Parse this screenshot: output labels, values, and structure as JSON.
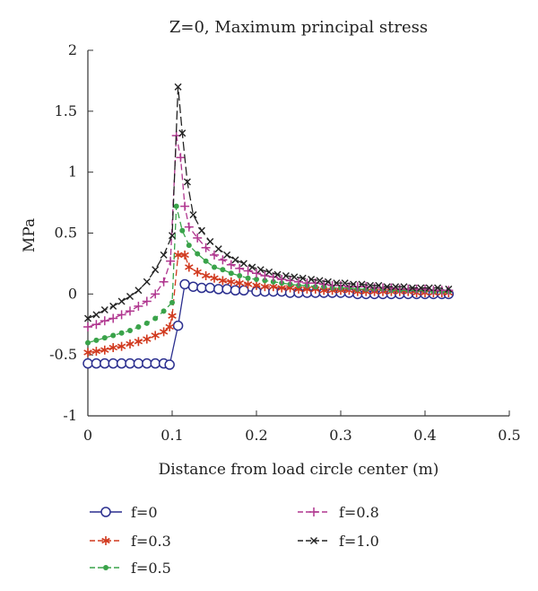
{
  "chart_data": {
    "type": "line",
    "title": "Z=0, Maximum principal stress",
    "xlabel": "Distance from load circle center (m)",
    "ylabel": "MPa",
    "xlim": [
      0,
      0.5
    ],
    "ylim": [
      -1,
      2
    ],
    "xticks": [
      0,
      0.1,
      0.2,
      0.3,
      0.4,
      0.5
    ],
    "xtick_labels": [
      "0",
      "0.1",
      "0.2",
      "0.3",
      "0.4",
      "0.5"
    ],
    "yticks": [
      -1,
      -0.5,
      0,
      0.5,
      1,
      1.5,
      2
    ],
    "ytick_labels": [
      "-1",
      "-0.5",
      "0",
      "0.5",
      "1",
      "1.5",
      "2"
    ],
    "grid": false,
    "legend_position": "bottom",
    "series": [
      {
        "name": "f=0",
        "color": "#2b2f8f",
        "marker": "circle",
        "dash": "solid",
        "x": [
          0,
          0.01,
          0.02,
          0.03,
          0.04,
          0.05,
          0.06,
          0.07,
          0.08,
          0.09,
          0.097,
          0.107,
          0.115,
          0.125,
          0.135,
          0.145,
          0.155,
          0.165,
          0.175,
          0.185,
          0.2,
          0.21,
          0.22,
          0.23,
          0.24,
          0.25,
          0.26,
          0.27,
          0.28,
          0.29,
          0.3,
          0.31,
          0.32,
          0.33,
          0.34,
          0.35,
          0.36,
          0.37,
          0.38,
          0.39,
          0.4,
          0.41,
          0.42,
          0.428
        ],
        "y": [
          -0.57,
          -0.57,
          -0.57,
          -0.57,
          -0.57,
          -0.57,
          -0.57,
          -0.57,
          -0.57,
          -0.57,
          -0.58,
          -0.26,
          0.08,
          0.06,
          0.05,
          0.05,
          0.04,
          0.04,
          0.03,
          0.03,
          0.02,
          0.02,
          0.02,
          0.02,
          0.01,
          0.01,
          0.01,
          0.01,
          0.01,
          0.01,
          0.01,
          0.01,
          0.0,
          0.0,
          0.0,
          0.0,
          0.0,
          0.0,
          0.0,
          0.0,
          0.0,
          0.0,
          0.0,
          0.0
        ]
      },
      {
        "name": "f=0.3",
        "color": "#d13a1f",
        "marker": "asterisk",
        "dash": "dash",
        "x": [
          0,
          0.01,
          0.02,
          0.03,
          0.04,
          0.05,
          0.06,
          0.07,
          0.08,
          0.09,
          0.097,
          0.1,
          0.107,
          0.115,
          0.12,
          0.13,
          0.14,
          0.15,
          0.16,
          0.17,
          0.18,
          0.19,
          0.2,
          0.21,
          0.22,
          0.23,
          0.24,
          0.25,
          0.26,
          0.27,
          0.28,
          0.29,
          0.3,
          0.31,
          0.32,
          0.33,
          0.34,
          0.35,
          0.36,
          0.37,
          0.38,
          0.39,
          0.4,
          0.41,
          0.42,
          0.428
        ],
        "y": [
          -0.48,
          -0.47,
          -0.46,
          -0.44,
          -0.43,
          -0.41,
          -0.39,
          -0.37,
          -0.34,
          -0.31,
          -0.27,
          -0.18,
          0.32,
          0.32,
          0.22,
          0.18,
          0.15,
          0.13,
          0.11,
          0.1,
          0.09,
          0.08,
          0.07,
          0.06,
          0.06,
          0.05,
          0.05,
          0.04,
          0.04,
          0.04,
          0.03,
          0.03,
          0.03,
          0.03,
          0.02,
          0.02,
          0.02,
          0.02,
          0.02,
          0.02,
          0.02,
          0.01,
          0.01,
          0.01,
          0.01,
          0.01
        ]
      },
      {
        "name": "f=0.5",
        "color": "#3aa34a",
        "marker": "dot",
        "dash": "dash",
        "x": [
          0,
          0.01,
          0.02,
          0.03,
          0.04,
          0.05,
          0.06,
          0.07,
          0.08,
          0.09,
          0.1,
          0.105,
          0.112,
          0.12,
          0.13,
          0.14,
          0.15,
          0.16,
          0.17,
          0.18,
          0.19,
          0.2,
          0.21,
          0.22,
          0.23,
          0.24,
          0.25,
          0.26,
          0.27,
          0.28,
          0.29,
          0.3,
          0.31,
          0.32,
          0.33,
          0.34,
          0.35,
          0.36,
          0.37,
          0.38,
          0.39,
          0.4,
          0.41,
          0.42,
          0.428
        ],
        "y": [
          -0.4,
          -0.38,
          -0.36,
          -0.34,
          -0.32,
          -0.3,
          -0.27,
          -0.24,
          -0.2,
          -0.14,
          -0.07,
          0.72,
          0.52,
          0.4,
          0.33,
          0.27,
          0.22,
          0.2,
          0.17,
          0.15,
          0.13,
          0.12,
          0.11,
          0.1,
          0.09,
          0.08,
          0.07,
          0.07,
          0.06,
          0.06,
          0.05,
          0.05,
          0.05,
          0.04,
          0.04,
          0.04,
          0.04,
          0.03,
          0.03,
          0.03,
          0.03,
          0.03,
          0.02,
          0.02,
          0.02
        ]
      },
      {
        "name": "f=0.8",
        "color": "#b0368f",
        "marker": "plus",
        "dash": "dash",
        "x": [
          0,
          0.01,
          0.02,
          0.03,
          0.04,
          0.05,
          0.06,
          0.07,
          0.08,
          0.09,
          0.098,
          0.105,
          0.11,
          0.115,
          0.12,
          0.13,
          0.14,
          0.15,
          0.16,
          0.17,
          0.18,
          0.19,
          0.2,
          0.21,
          0.22,
          0.23,
          0.24,
          0.25,
          0.26,
          0.27,
          0.28,
          0.29,
          0.3,
          0.31,
          0.32,
          0.33,
          0.34,
          0.35,
          0.36,
          0.37,
          0.38,
          0.39,
          0.4,
          0.41,
          0.42,
          0.428
        ],
        "y": [
          -0.27,
          -0.25,
          -0.22,
          -0.2,
          -0.17,
          -0.14,
          -0.1,
          -0.06,
          0.0,
          0.1,
          0.27,
          1.3,
          1.12,
          0.72,
          0.55,
          0.46,
          0.38,
          0.32,
          0.28,
          0.24,
          0.21,
          0.19,
          0.17,
          0.15,
          0.14,
          0.12,
          0.11,
          0.1,
          0.09,
          0.09,
          0.08,
          0.07,
          0.07,
          0.06,
          0.06,
          0.06,
          0.05,
          0.05,
          0.05,
          0.04,
          0.04,
          0.04,
          0.04,
          0.03,
          0.03,
          0.03
        ]
      },
      {
        "name": "f=1.0",
        "color": "#222222",
        "marker": "x",
        "dash": "longdash",
        "x": [
          0,
          0.01,
          0.02,
          0.03,
          0.04,
          0.05,
          0.06,
          0.07,
          0.08,
          0.09,
          0.1,
          0.107,
          0.112,
          0.118,
          0.125,
          0.135,
          0.145,
          0.155,
          0.165,
          0.175,
          0.185,
          0.195,
          0.205,
          0.215,
          0.225,
          0.235,
          0.245,
          0.255,
          0.265,
          0.275,
          0.285,
          0.295,
          0.305,
          0.315,
          0.325,
          0.335,
          0.345,
          0.355,
          0.365,
          0.375,
          0.385,
          0.395,
          0.405,
          0.415,
          0.428
        ],
        "y": [
          -0.2,
          -0.17,
          -0.13,
          -0.1,
          -0.06,
          -0.02,
          0.03,
          0.1,
          0.2,
          0.32,
          0.48,
          1.7,
          1.32,
          0.92,
          0.65,
          0.52,
          0.43,
          0.37,
          0.32,
          0.28,
          0.25,
          0.22,
          0.2,
          0.18,
          0.16,
          0.15,
          0.14,
          0.13,
          0.12,
          0.11,
          0.1,
          0.09,
          0.09,
          0.08,
          0.08,
          0.07,
          0.07,
          0.06,
          0.06,
          0.06,
          0.05,
          0.05,
          0.05,
          0.05,
          0.04
        ]
      }
    ],
    "legend_order": [
      0,
      2,
      3,
      1,
      4
    ]
  }
}
